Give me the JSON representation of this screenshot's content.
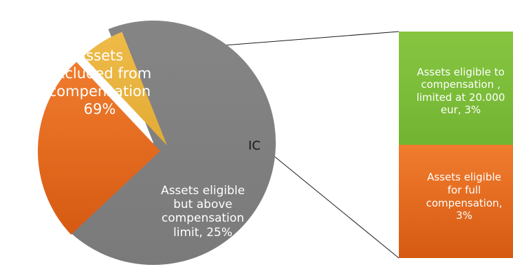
{
  "chart_data": {
    "type": "pie",
    "subtype": "pie-of-pie",
    "slices": [
      {
        "key": "excluded",
        "label": "Assets excluded from compensation",
        "value": 69,
        "color": "#808080",
        "display": "Assets\nexcluded from\ncompensation\n69%"
      },
      {
        "key": "above_limit",
        "label": "Assets eligible but above compensation limit",
        "value": 25,
        "color": "#e8671c",
        "display": "Assets eligible\nbut above\ncompensation\nlimit, 25%"
      },
      {
        "key": "ic",
        "label": "IC",
        "value": 6,
        "color": "#eab43f",
        "display": "IC"
      }
    ],
    "breakdown": {
      "of": "IC",
      "type": "stacked-bar",
      "segments": [
        {
          "key": "limited",
          "label": "Assets eligible to compensation , limited at 20.000 eur",
          "value": 3,
          "color": "#7cbf3a",
          "display": "Assets eligible to\ncompensation ,\nlimited at 20.000\neur, 3%"
        },
        {
          "key": "full",
          "label": "Assets eligible for full compensation",
          "value": 3,
          "color": "#e8671c",
          "display": "Assets eligible\nfor full\ncompensation,\n3%"
        }
      ]
    },
    "title": "",
    "legend": "none"
  }
}
